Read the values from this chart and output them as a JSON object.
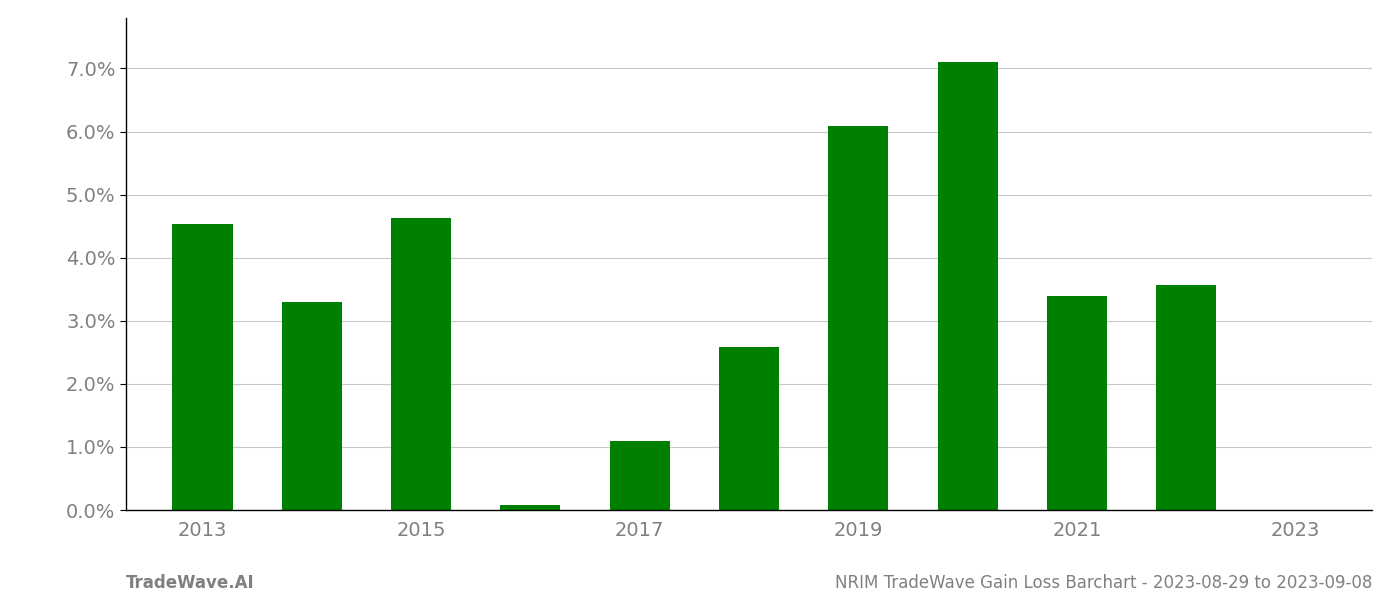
{
  "years": [
    2013,
    2014,
    2015,
    2016,
    2017,
    2018,
    2019,
    2020,
    2021,
    2022,
    2023
  ],
  "values": [
    0.0453,
    0.033,
    0.0463,
    0.0008,
    0.011,
    0.0258,
    0.0608,
    0.071,
    0.034,
    0.0357,
    0.0
  ],
  "bar_color": "#008000",
  "background_color": "#ffffff",
  "grid_color": "#c8c8c8",
  "ylim": [
    0,
    0.078
  ],
  "yticks": [
    0.0,
    0.01,
    0.02,
    0.03,
    0.04,
    0.05,
    0.06,
    0.07
  ],
  "footer_left": "TradeWave.AI",
  "footer_right": "NRIM TradeWave Gain Loss Barchart - 2023-08-29 to 2023-09-08",
  "footer_color": "#808080",
  "axis_label_color": "#808080",
  "bar_width": 0.55,
  "tick_fontsize": 14,
  "footer_fontsize": 12
}
